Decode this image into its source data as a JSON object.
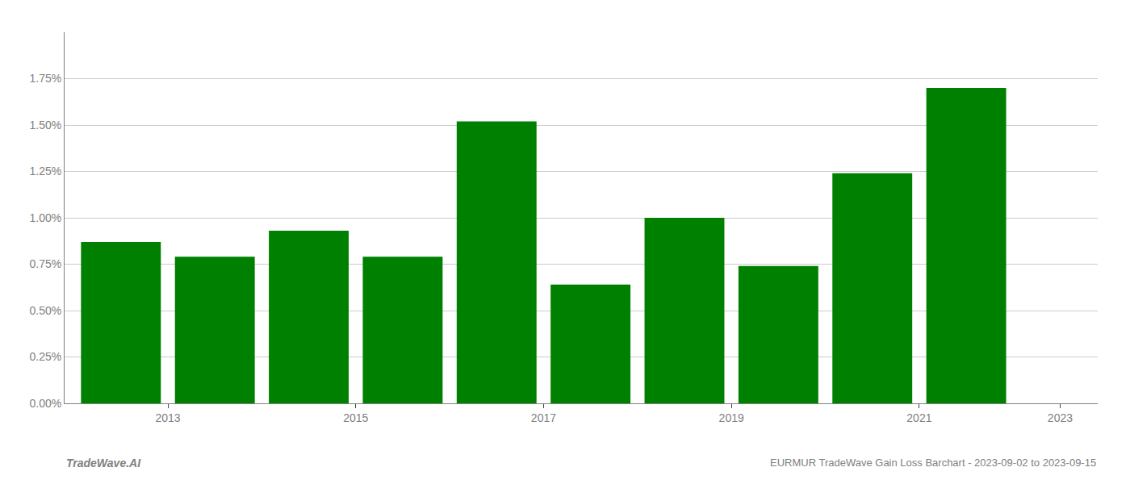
{
  "chart_data": {
    "type": "bar",
    "x": [
      2013,
      2014,
      2015,
      2016,
      2017,
      2018,
      2019,
      2020,
      2021,
      2022
    ],
    "values": [
      0.0087,
      0.0079,
      0.0093,
      0.0079,
      0.0152,
      0.0064,
      0.01,
      0.0074,
      0.0124,
      0.017
    ],
    "color": "#008000",
    "xlim": [
      2012.4,
      2023.4
    ],
    "xticks": [
      {
        "value": 2013.5,
        "label": "2013"
      },
      {
        "value": 2015.5,
        "label": "2015"
      },
      {
        "value": 2017.5,
        "label": "2017"
      },
      {
        "value": 2019.5,
        "label": "2019"
      },
      {
        "value": 2021.5,
        "label": "2021"
      },
      {
        "value": 2023.0,
        "label": "2023"
      }
    ],
    "ylim": [
      0,
      0.02
    ],
    "yticks": [
      {
        "value": 0.0,
        "label": "0.00%"
      },
      {
        "value": 0.0025,
        "label": "0.25%"
      },
      {
        "value": 0.005,
        "label": "0.50%"
      },
      {
        "value": 0.0075,
        "label": "0.75%"
      },
      {
        "value": 0.01,
        "label": "1.00%"
      },
      {
        "value": 0.0125,
        "label": "1.25%"
      },
      {
        "value": 0.015,
        "label": "1.50%"
      },
      {
        "value": 0.0175,
        "label": "1.75%"
      }
    ],
    "grid": "y",
    "annotations": [
      "TradeWave.AI",
      "EURMUR TradeWave Gain Loss Barchart - 2023-09-02 to 2023-09-15"
    ]
  }
}
